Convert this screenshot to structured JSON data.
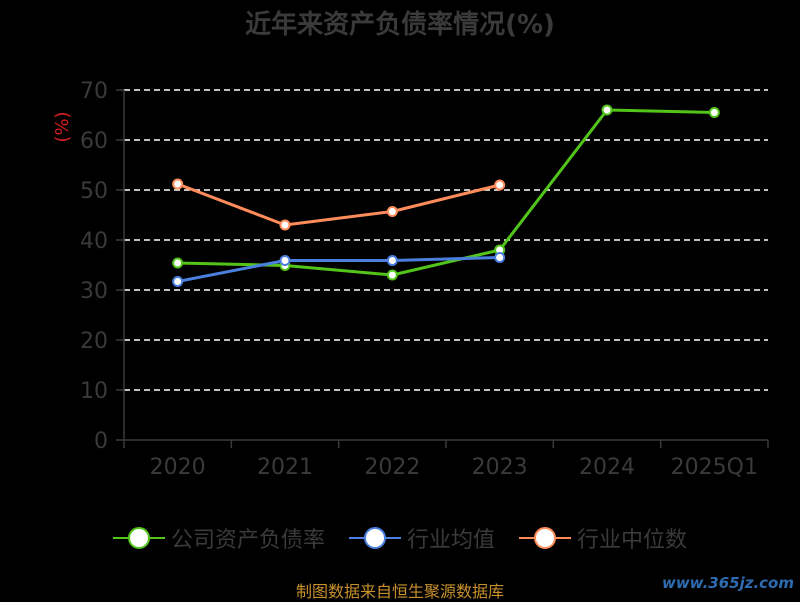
{
  "title": "近年来资产负债率情况(%)",
  "source_note": "制图数据来自恒生聚源数据库",
  "watermark": "www.365jz.com",
  "chart_data": {
    "type": "line",
    "title": "近年来资产负债率情况(%)",
    "ylabel": "(%)",
    "xlabel": "",
    "categories": [
      "2020",
      "2021",
      "2022",
      "2023",
      "2024",
      "2025Q1"
    ],
    "ylim": [
      0,
      70
    ],
    "yticks": [
      0,
      10,
      20,
      30,
      40,
      50,
      60,
      70
    ],
    "grid": true,
    "legend_position": "bottom",
    "series": [
      {
        "name": "公司资产负债率",
        "color": "#52c41a",
        "values": [
          35.4,
          34.9,
          33.0,
          38.0,
          66.0,
          65.5
        ]
      },
      {
        "name": "行业均值",
        "color": "#4a7fe0",
        "values": [
          31.7,
          35.9,
          35.9,
          36.5,
          null,
          null
        ]
      },
      {
        "name": "行业中位数",
        "color": "#ff8c5a",
        "values": [
          51.2,
          43.0,
          45.7,
          51.0,
          null,
          null
        ]
      }
    ]
  }
}
